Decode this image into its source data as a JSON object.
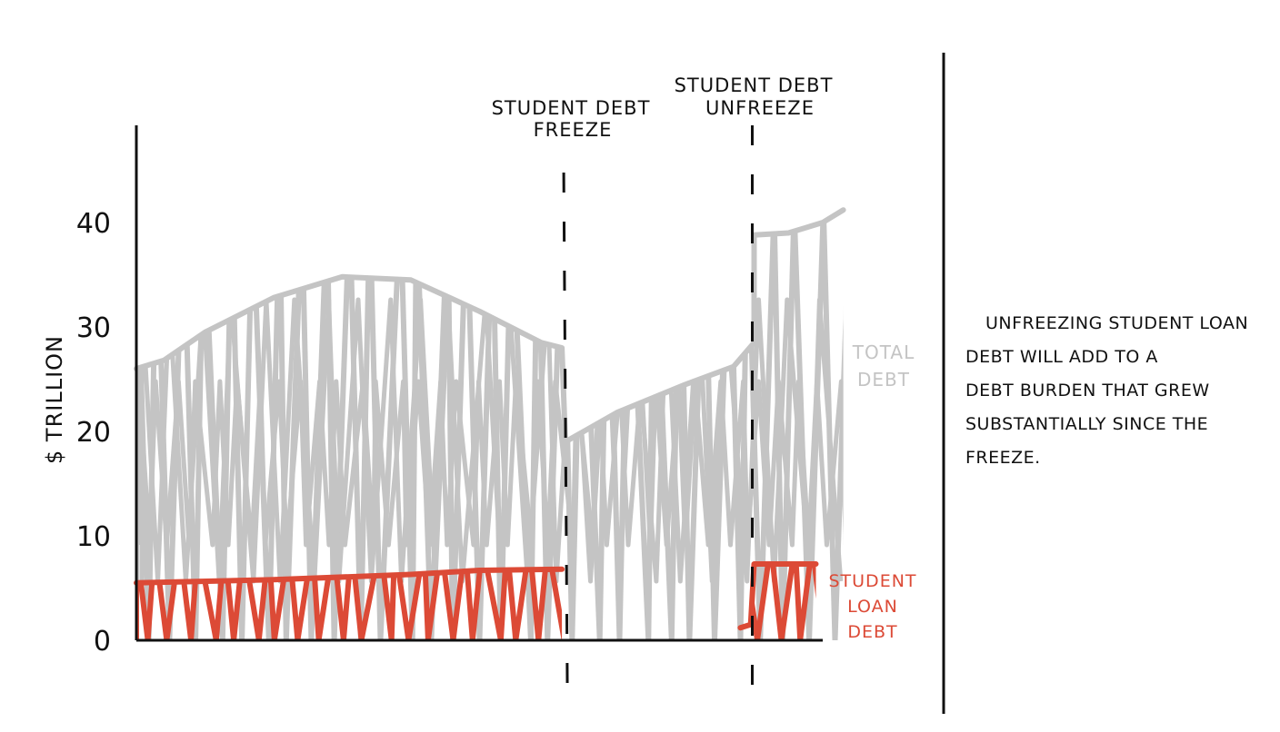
{
  "chart_data": {
    "type": "area",
    "ylabel": "$ TRILLION",
    "ylim": [
      0,
      47
    ],
    "y_ticks": [
      {
        "value": 0,
        "label": "0"
      },
      {
        "value": 10,
        "label": "10"
      },
      {
        "value": 20,
        "label": "20"
      },
      {
        "value": 30,
        "label": "30"
      },
      {
        "value": 40,
        "label": "40"
      }
    ],
    "grid": false,
    "series": [
      {
        "name": "TOTAL DEBT",
        "color": "#c4c4c4",
        "points": [
          [
            0.0,
            26.0
          ],
          [
            0.04,
            26.8
          ],
          [
            0.1,
            29.5
          ],
          [
            0.2,
            32.8
          ],
          [
            0.3,
            34.8
          ],
          [
            0.4,
            34.5
          ],
          [
            0.5,
            31.5
          ],
          [
            0.59,
            28.5
          ],
          [
            0.62,
            28.0
          ],
          [
            0.625,
            19.0
          ],
          [
            0.7,
            21.8
          ],
          [
            0.8,
            24.5
          ],
          [
            0.87,
            26.2
          ],
          [
            0.9,
            28.5
          ],
          [
            0.9,
            38.8
          ],
          [
            0.95,
            39.0
          ],
          [
            1.0,
            40.0
          ],
          [
            1.03,
            41.2
          ]
        ]
      },
      {
        "name": "STUDENT LOAN DEBT",
        "color": "#dc4a36",
        "points": [
          [
            0.0,
            5.5
          ],
          [
            0.2,
            5.8
          ],
          [
            0.4,
            6.3
          ],
          [
            0.5,
            6.7
          ],
          [
            0.62,
            6.8
          ],
          [
            0.62,
            0.0
          ],
          [
            0.88,
            0.0
          ],
          [
            0.88,
            1.2
          ],
          [
            0.895,
            1.5
          ],
          [
            0.9,
            7.3
          ],
          [
            0.99,
            7.3
          ]
        ]
      }
    ],
    "annotations": [
      {
        "text": [
          "STUDENT DEBT",
          "FREEZE"
        ],
        "at_x": 0.62
      },
      {
        "text": [
          "STUDENT DEBT",
          "UNFREEZE"
        ],
        "at_x": 0.9
      }
    ]
  },
  "note": {
    "lines": [
      "UNFREEZING STUDENT LOAN",
      "DEBT WILL ADD TO A",
      "DEBT BURDEN THAT GREW",
      "SUBSTANTIALLY SINCE THE",
      "FREEZE."
    ]
  },
  "colors": {
    "ink": "#111111",
    "total_debt": "#c4c4c4",
    "student_debt": "#dc4a36"
  }
}
